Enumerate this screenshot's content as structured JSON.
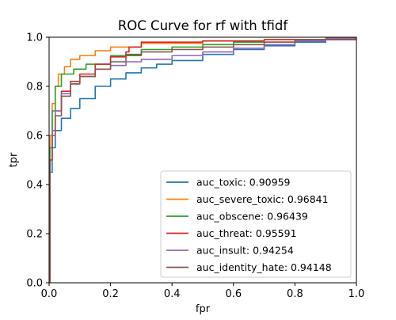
{
  "chart_data": {
    "type": "line",
    "title": "ROC Curve for rf with tfidf",
    "xlabel": "fpr",
    "ylabel": "tpr",
    "xlim": [
      0,
      1
    ],
    "ylim": [
      0,
      1
    ],
    "grid": false,
    "legend_position": "lower-right",
    "x_ticks": [
      "0.0",
      "0.2",
      "0.4",
      "0.6",
      "0.8",
      "1.0"
    ],
    "y_ticks": [
      "0.0",
      "0.2",
      "0.4",
      "0.6",
      "0.8",
      "1.0"
    ],
    "series": [
      {
        "name": "auc_toxic: 0.90959",
        "color": "#1f77b4",
        "points": [
          [
            0,
            0
          ],
          [
            0.003,
            0.45
          ],
          [
            0.01,
            0.55
          ],
          [
            0.02,
            0.62
          ],
          [
            0.04,
            0.67
          ],
          [
            0.07,
            0.71
          ],
          [
            0.1,
            0.75
          ],
          [
            0.15,
            0.8
          ],
          [
            0.2,
            0.83
          ],
          [
            0.25,
            0.855
          ],
          [
            0.3,
            0.875
          ],
          [
            0.35,
            0.89
          ],
          [
            0.4,
            0.905
          ],
          [
            0.5,
            0.93
          ],
          [
            0.6,
            0.95
          ],
          [
            0.7,
            0.965
          ],
          [
            0.8,
            0.98
          ],
          [
            0.9,
            0.99
          ],
          [
            1,
            1
          ]
        ]
      },
      {
        "name": "auc_severe_toxic: 0.96841",
        "color": "#ff7f0e",
        "points": [
          [
            0,
            0
          ],
          [
            0.003,
            0.6
          ],
          [
            0.01,
            0.73
          ],
          [
            0.02,
            0.8
          ],
          [
            0.03,
            0.85
          ],
          [
            0.05,
            0.88
          ],
          [
            0.07,
            0.91
          ],
          [
            0.1,
            0.925
          ],
          [
            0.15,
            0.945
          ],
          [
            0.2,
            0.96
          ],
          [
            0.3,
            0.975
          ],
          [
            0.5,
            0.985
          ],
          [
            0.7,
            0.99
          ],
          [
            0.9,
            0.995
          ],
          [
            1,
            1
          ]
        ]
      },
      {
        "name": "auc_obscene: 0.96439",
        "color": "#2ca02c",
        "points": [
          [
            0,
            0
          ],
          [
            0.002,
            0.55
          ],
          [
            0.01,
            0.7
          ],
          [
            0.02,
            0.8
          ],
          [
            0.04,
            0.85
          ],
          [
            0.08,
            0.87
          ],
          [
            0.12,
            0.89
          ],
          [
            0.2,
            0.925
          ],
          [
            0.3,
            0.95
          ],
          [
            0.4,
            0.96
          ],
          [
            0.5,
            0.97
          ],
          [
            0.6,
            0.98
          ],
          [
            0.8,
            0.99
          ],
          [
            1,
            1
          ]
        ]
      },
      {
        "name": "auc_threat: 0.95591",
        "color": "#d62728",
        "points": [
          [
            0,
            0
          ],
          [
            0.003,
            0.5
          ],
          [
            0.01,
            0.62
          ],
          [
            0.02,
            0.7
          ],
          [
            0.04,
            0.78
          ],
          [
            0.07,
            0.82
          ],
          [
            0.1,
            0.85
          ],
          [
            0.15,
            0.89
          ],
          [
            0.2,
            0.92
          ],
          [
            0.25,
            0.94
          ],
          [
            0.26,
            0.96
          ],
          [
            0.3,
            0.98
          ],
          [
            0.5,
            0.985
          ],
          [
            0.7,
            0.99
          ],
          [
            0.9,
            0.995
          ],
          [
            1,
            1
          ]
        ]
      },
      {
        "name": "auc_insult: 0.94254",
        "color": "#9467bd",
        "points": [
          [
            0,
            0
          ],
          [
            0.003,
            0.5
          ],
          [
            0.01,
            0.62
          ],
          [
            0.02,
            0.7
          ],
          [
            0.04,
            0.77
          ],
          [
            0.07,
            0.81
          ],
          [
            0.1,
            0.84
          ],
          [
            0.15,
            0.87
          ],
          [
            0.2,
            0.885
          ],
          [
            0.25,
            0.9
          ],
          [
            0.3,
            0.91
          ],
          [
            0.4,
            0.925
          ],
          [
            0.5,
            0.94
          ],
          [
            0.6,
            0.955
          ],
          [
            0.7,
            0.97
          ],
          [
            0.8,
            0.985
          ],
          [
            0.9,
            0.995
          ],
          [
            1,
            1
          ]
        ]
      },
      {
        "name": "auc_identity_hate: 0.94148",
        "color": "#8c564b",
        "points": [
          [
            0,
            0
          ],
          [
            0.003,
            0.5
          ],
          [
            0.01,
            0.6
          ],
          [
            0.02,
            0.68
          ],
          [
            0.04,
            0.76
          ],
          [
            0.07,
            0.81
          ],
          [
            0.1,
            0.84
          ],
          [
            0.15,
            0.87
          ],
          [
            0.2,
            0.9
          ],
          [
            0.25,
            0.93
          ],
          [
            0.3,
            0.94
          ],
          [
            0.4,
            0.95
          ],
          [
            0.5,
            0.96
          ],
          [
            0.6,
            0.97
          ],
          [
            0.7,
            0.98
          ],
          [
            0.8,
            0.99
          ],
          [
            1,
            1
          ]
        ]
      }
    ]
  }
}
